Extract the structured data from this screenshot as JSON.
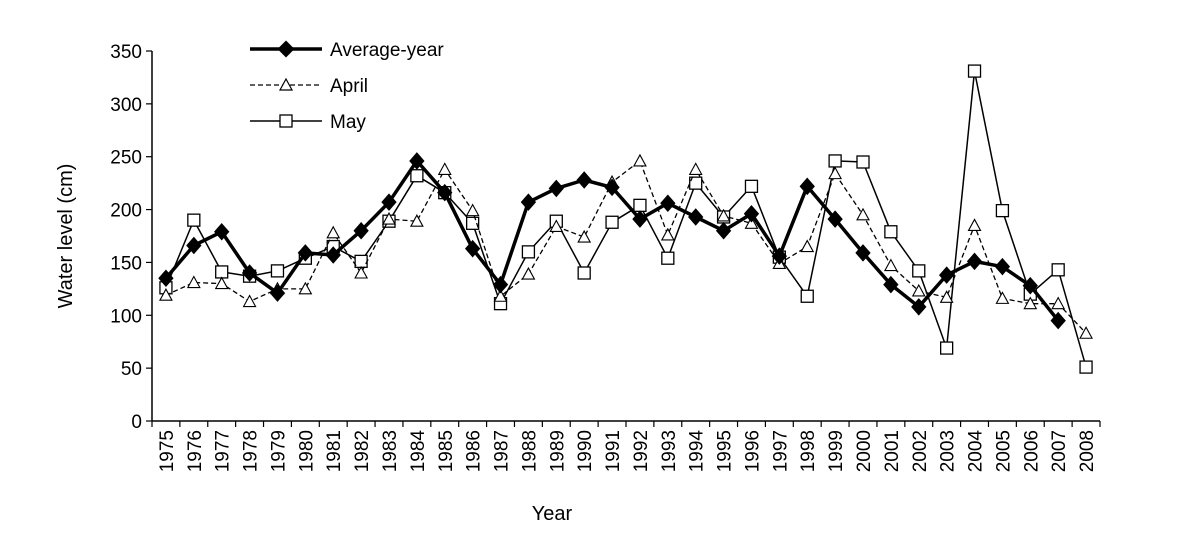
{
  "chart_data": {
    "type": "line",
    "title": "",
    "xlabel": "Year",
    "ylabel": "Water level (cm)",
    "ylim": [
      0,
      350
    ],
    "yticks": [
      0,
      50,
      100,
      150,
      200,
      250,
      300,
      350
    ],
    "grid": false,
    "legend_position": "top-left",
    "categories": [
      "1975",
      "1976",
      "1977",
      "1978",
      "1979",
      "1980",
      "1981",
      "1982",
      "1983",
      "1984",
      "1985",
      "1986",
      "1987",
      "1988",
      "1989",
      "1990",
      "1991",
      "1992",
      "1993",
      "1994",
      "1995",
      "1996",
      "1997",
      "1998",
      "1999",
      "2000",
      "2001",
      "2002",
      "2003",
      "2004",
      "2005",
      "2006",
      "2007",
      "2008"
    ],
    "series": [
      {
        "name": "Average-year",
        "style": "bold-solid",
        "marker": "diamond",
        "color": "#000000",
        "values": [
          135,
          166,
          179,
          140,
          121,
          159,
          157,
          180,
          207,
          246,
          216,
          163,
          129,
          207,
          220,
          228,
          221,
          191,
          206,
          193,
          180,
          196,
          156,
          222,
          191,
          159,
          129,
          108,
          138,
          151,
          146,
          128,
          95,
          null
        ]
      },
      {
        "name": "April",
        "style": "dashed",
        "marker": "triangle",
        "color": "#000000",
        "values": [
          119,
          131,
          130,
          113,
          125,
          125,
          178,
          140,
          191,
          189,
          238,
          199,
          118,
          139,
          184,
          174,
          226,
          246,
          176,
          238,
          194,
          187,
          149,
          165,
          234,
          195,
          147,
          123,
          117,
          185,
          116,
          111,
          111,
          83
        ]
      },
      {
        "name": "May",
        "style": "solid",
        "marker": "square",
        "color": "#000000",
        "values": [
          126,
          190,
          141,
          137,
          142,
          154,
          165,
          151,
          189,
          232,
          216,
          187,
          111,
          160,
          189,
          140,
          188,
          204,
          154,
          225,
          193,
          222,
          155,
          118,
          246,
          245,
          179,
          142,
          69,
          331,
          199,
          120,
          143,
          51
        ]
      }
    ]
  }
}
